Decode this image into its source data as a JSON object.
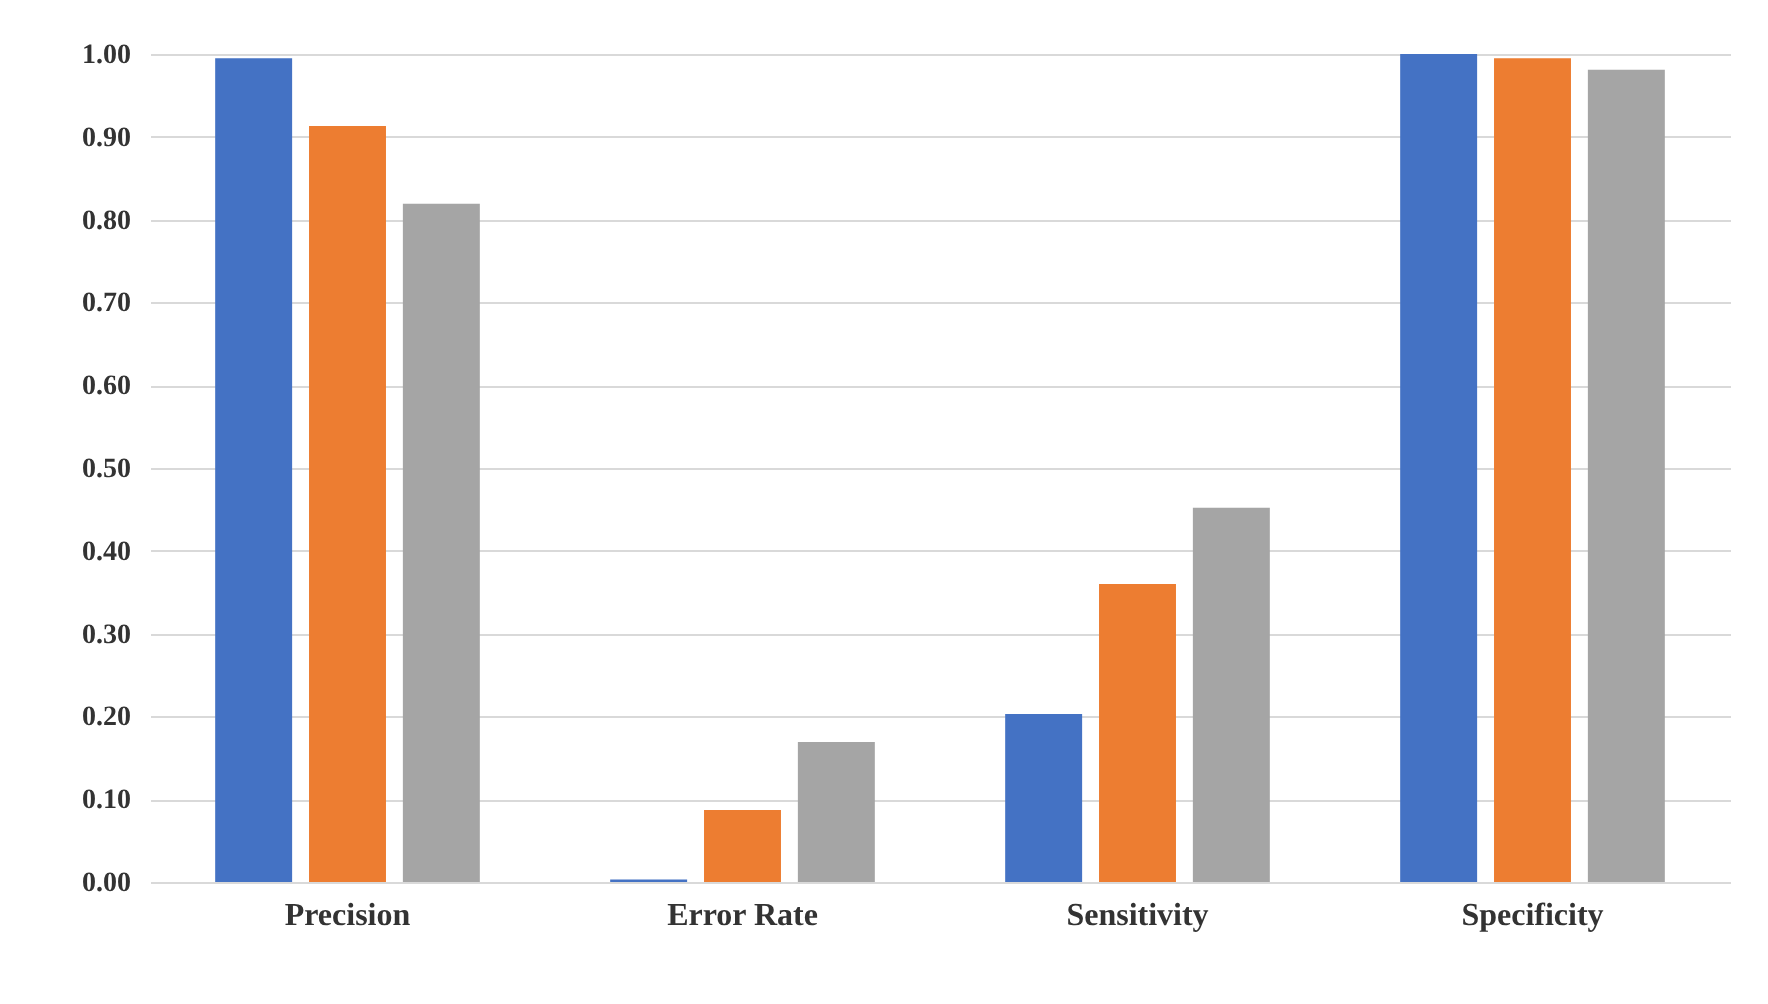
{
  "chart_data": {
    "type": "bar",
    "categories": [
      "Precision",
      "Error Rate",
      "Sensitivity",
      "Specificity"
    ],
    "series": [
      {
        "color": "#4472c4",
        "values": [
          0.995,
          0.003,
          0.203,
          1.0
        ]
      },
      {
        "color": "#ed7d31",
        "values": [
          0.913,
          0.087,
          0.36,
          0.995
        ]
      },
      {
        "color": "#a5a5a5",
        "values": [
          0.819,
          0.169,
          0.452,
          0.981
        ]
      }
    ],
    "ylim": [
      0,
      1
    ],
    "yticks": [
      {
        "value": 0,
        "label": "0.00"
      },
      {
        "value": 0.1,
        "label": "0.10"
      },
      {
        "value": 0.2,
        "label": "0.20"
      },
      {
        "value": 0.3,
        "label": "0.30"
      },
      {
        "value": 0.4,
        "label": "0.40"
      },
      {
        "value": 0.5,
        "label": "0.50"
      },
      {
        "value": 0.6,
        "label": "0.60"
      },
      {
        "value": 0.7,
        "label": "0.70"
      },
      {
        "value": 0.8,
        "label": "0.80"
      },
      {
        "value": 0.9,
        "label": "0.90"
      },
      {
        "value": 1,
        "label": "1.00"
      }
    ],
    "grid": "y"
  }
}
